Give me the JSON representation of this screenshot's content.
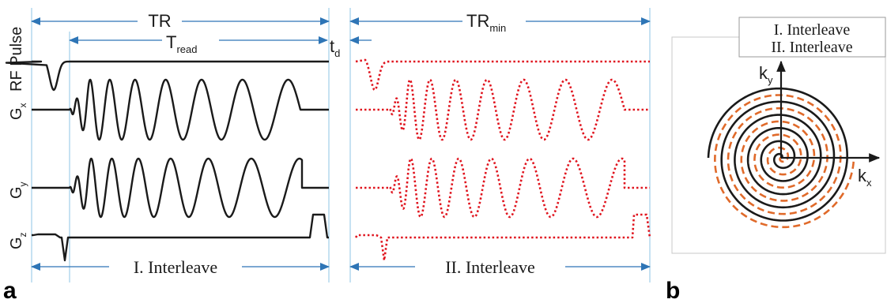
{
  "colors": {
    "black_trace": "#1a1a1a",
    "red_trace": "#e0141e",
    "orange_spiral": "#e06a2a",
    "arrow_blue": "#2e75b6",
    "guide_line": "#8ec6e6"
  },
  "labels": {
    "tr": "TR",
    "tread_main": "T",
    "tread_sub": "read",
    "td_main": "t",
    "td_sub": "d",
    "trmin_main": "TR",
    "trmin_sub": "min",
    "rf_pulse": "RF Pulse",
    "gx_main": "G",
    "gx_sub": "x",
    "gy_main": "G",
    "gy_sub": "y",
    "gz_main": "G",
    "gz_sub": "z",
    "interleave_1": "I. Interleave",
    "interleave_2": "II. Interleave",
    "panel_a": "a",
    "panel_b": "b"
  },
  "kspace": {
    "legend_1": "I. Interleave",
    "legend_2": "II. Interleave",
    "ky_main": "k",
    "ky_sub": "y",
    "kx_main": "k",
    "kx_sub": "x"
  }
}
